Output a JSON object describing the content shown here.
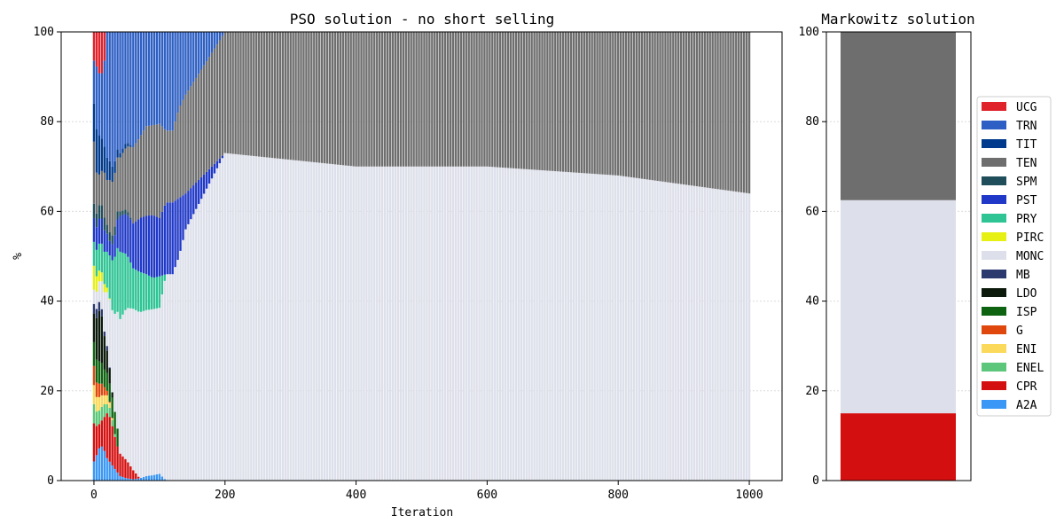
{
  "chart_data": [
    {
      "type": "stacked-bar",
      "title": "PSO solution - no short selling",
      "xlabel": "Iteration",
      "ylabel": "%",
      "xlim": [
        -50,
        1050
      ],
      "ylim": [
        0,
        100
      ],
      "xticks": [
        0,
        200,
        400,
        600,
        800,
        1000
      ],
      "yticks": [
        0,
        20,
        40,
        60,
        80,
        100
      ],
      "grid": "horizontal",
      "series_order": [
        "A2A",
        "CPR",
        "ENEL",
        "ENI",
        "G",
        "ISP",
        "LDO",
        "MB",
        "MONC",
        "PIRC",
        "PRY",
        "PST",
        "SPM",
        "TEN",
        "TIT",
        "TRN",
        "UCG"
      ],
      "series": [
        {
          "name": "A2A",
          "x": [
            0,
            5,
            10,
            15,
            20,
            25,
            30,
            35,
            40,
            50,
            60,
            70,
            80,
            90,
            100,
            110,
            120,
            130,
            140,
            200,
            400,
            600,
            800,
            1000
          ],
          "values": [
            4,
            6,
            8,
            7,
            5,
            4,
            3,
            2,
            1,
            0.5,
            0.3,
            0.5,
            1,
            1.2,
            1.5,
            0,
            0,
            0,
            0,
            0,
            0,
            0,
            0,
            0
          ]
        },
        {
          "name": "CPR",
          "x": [
            0,
            5,
            10,
            15,
            20,
            25,
            30,
            35,
            40,
            50,
            60,
            70,
            80,
            90,
            100,
            110,
            120,
            130,
            140,
            200,
            400,
            600,
            800,
            1000
          ],
          "values": [
            8,
            6,
            5,
            7,
            10,
            10,
            8,
            6,
            5,
            4,
            2,
            0,
            0,
            0,
            0,
            0,
            0,
            0,
            0,
            0,
            0,
            0,
            0,
            0
          ]
        },
        {
          "name": "ENEL",
          "x": [
            0,
            5,
            10,
            15,
            20,
            25,
            30,
            35,
            40,
            50,
            60,
            70,
            80,
            90,
            100,
            110,
            120,
            130,
            140,
            200,
            400,
            600,
            800,
            1000
          ],
          "values": [
            4,
            3,
            3,
            3,
            2,
            2,
            1,
            0,
            0,
            0,
            0,
            0,
            0,
            0,
            0,
            0,
            0,
            0,
            0,
            0,
            0,
            0,
            0,
            0
          ]
        },
        {
          "name": "ENI",
          "x": [
            0,
            5,
            10,
            15,
            20,
            25,
            30,
            35,
            40,
            50,
            60,
            70,
            80,
            90,
            100,
            110,
            120,
            130,
            140,
            200,
            400,
            600,
            800,
            1000
          ],
          "values": [
            4,
            3,
            3,
            2,
            2,
            1,
            0,
            0,
            0,
            0,
            0,
            0,
            0,
            0,
            0,
            0,
            0,
            0,
            0,
            0,
            0,
            0,
            0,
            0
          ]
        },
        {
          "name": "G",
          "x": [
            0,
            5,
            10,
            15,
            20,
            25,
            30,
            35,
            40,
            50,
            60,
            70,
            80,
            90,
            100,
            110,
            120,
            130,
            140,
            200,
            400,
            600,
            800,
            1000
          ],
          "values": [
            4,
            3,
            3,
            2,
            1,
            0,
            0,
            0,
            0,
            0,
            0,
            0,
            0,
            0,
            0,
            0,
            0,
            0,
            0,
            0,
            0,
            0,
            0,
            0
          ]
        },
        {
          "name": "ISP",
          "x": [
            0,
            5,
            10,
            15,
            20,
            25,
            30,
            35,
            40,
            50,
            60,
            70,
            80,
            90,
            100,
            110,
            120,
            130,
            140,
            200,
            400,
            600,
            800,
            1000
          ],
          "values": [
            5,
            5,
            5,
            4,
            4,
            4,
            5,
            5,
            0,
            0,
            0,
            0,
            0,
            0,
            0,
            0,
            0,
            0,
            0,
            0,
            0,
            0,
            0,
            0
          ]
        },
        {
          "name": "LDO",
          "x": [
            0,
            5,
            10,
            15,
            20,
            25,
            30,
            35,
            40,
            50,
            60,
            70,
            80,
            90,
            100,
            110,
            120,
            130,
            140,
            200,
            400,
            600,
            800,
            1000
          ],
          "values": [
            6,
            10,
            12,
            8,
            5,
            3,
            0,
            0,
            0,
            0,
            0,
            0,
            0,
            0,
            0,
            0,
            0,
            0,
            0,
            0,
            0,
            0,
            0,
            0
          ]
        },
        {
          "name": "MB",
          "x": [
            0,
            5,
            10,
            15,
            20,
            25,
            30,
            35,
            40,
            50,
            60,
            70,
            80,
            90,
            100,
            110,
            120,
            130,
            140,
            200,
            400,
            600,
            800,
            1000
          ],
          "values": [
            2,
            2,
            2,
            1,
            1,
            0,
            0,
            0,
            0,
            0,
            0,
            0,
            0,
            0,
            0,
            0,
            0,
            0,
            0,
            0,
            0,
            0,
            0,
            0
          ]
        },
        {
          "name": "MONC",
          "x": [
            0,
            5,
            10,
            15,
            20,
            25,
            30,
            35,
            40,
            50,
            60,
            70,
            80,
            90,
            100,
            110,
            120,
            130,
            140,
            200,
            400,
            600,
            800,
            1000
          ],
          "values": [
            3,
            4,
            5,
            8,
            12,
            16,
            20,
            25,
            30,
            34,
            36,
            37,
            37,
            37,
            37,
            46,
            46,
            50,
            56,
            73,
            70,
            70,
            68,
            64
          ]
        },
        {
          "name": "PIRC",
          "x": [
            0,
            5,
            10,
            15,
            20,
            25,
            30,
            35,
            40,
            50,
            60,
            70,
            80,
            90,
            100,
            110,
            120,
            130,
            140,
            200,
            400,
            600,
            800,
            1000
          ],
          "values": [
            5,
            3,
            2,
            2,
            1,
            0,
            0,
            0,
            0,
            0,
            0,
            0,
            0,
            0,
            0,
            0,
            0,
            0,
            0,
            0,
            0,
            0,
            0,
            0
          ]
        },
        {
          "name": "PRY",
          "x": [
            0,
            5,
            10,
            15,
            20,
            25,
            30,
            35,
            40,
            50,
            60,
            70,
            80,
            90,
            100,
            110,
            120,
            130,
            140,
            200,
            400,
            600,
            800,
            1000
          ],
          "values": [
            5,
            6,
            6,
            7,
            8,
            10,
            12,
            14,
            15,
            12,
            9,
            9,
            8,
            7,
            7,
            0,
            0,
            0,
            0,
            0,
            0,
            0,
            0,
            0
          ]
        },
        {
          "name": "PST",
          "x": [
            0,
            5,
            10,
            15,
            20,
            25,
            30,
            35,
            40,
            50,
            60,
            70,
            80,
            90,
            100,
            110,
            120,
            130,
            140,
            200,
            400,
            600,
            800,
            1000
          ],
          "values": [
            5,
            5,
            6,
            5,
            4,
            3,
            4,
            6,
            8,
            9,
            10,
            12,
            13,
            14,
            13,
            16,
            16,
            13,
            8,
            0,
            0,
            0,
            0,
            0
          ]
        },
        {
          "name": "SPM",
          "x": [
            0,
            5,
            10,
            15,
            20,
            25,
            30,
            35,
            40,
            50,
            60,
            70,
            80,
            90,
            100,
            110,
            120,
            130,
            140,
            200,
            400,
            600,
            800,
            1000
          ],
          "values": [
            3,
            3,
            3,
            3,
            2,
            2,
            2,
            2,
            1,
            1,
            0,
            0,
            0,
            0,
            0,
            0,
            0,
            0,
            0,
            0,
            0,
            0,
            0,
            0
          ]
        },
        {
          "name": "TEN",
          "x": [
            0,
            5,
            10,
            15,
            20,
            25,
            30,
            35,
            40,
            50,
            60,
            70,
            80,
            90,
            100,
            110,
            120,
            130,
            140,
            200,
            400,
            600,
            800,
            1000
          ],
          "values": [
            13,
            8,
            6,
            10,
            10,
            12,
            12,
            12,
            12,
            14,
            17,
            18,
            20,
            20,
            21,
            16,
            16,
            20,
            22,
            27,
            30,
            30,
            32,
            36
          ]
        },
        {
          "name": "TIT",
          "x": [
            0,
            5,
            10,
            15,
            20,
            25,
            30,
            35,
            40,
            50,
            60,
            70,
            80,
            90,
            100,
            110,
            120,
            130,
            140,
            200,
            400,
            600,
            800,
            1000
          ],
          "values": [
            8,
            10,
            8,
            6,
            5,
            4,
            3,
            2,
            1,
            1,
            0,
            0,
            0,
            0,
            0,
            0,
            0,
            0,
            0,
            0,
            0,
            0,
            0,
            0
          ]
        },
        {
          "name": "TRN",
          "x": [
            0,
            5,
            10,
            15,
            20,
            25,
            30,
            35,
            40,
            50,
            60,
            70,
            80,
            90,
            100,
            110,
            120,
            130,
            140,
            200,
            400,
            600,
            800,
            1000
          ],
          "values": [
            9,
            15,
            13,
            17,
            28,
            29,
            31,
            26,
            27,
            24.5,
            25.7,
            23.5,
            21,
            20.8,
            20.5,
            22,
            22,
            17,
            14,
            0,
            0,
            0,
            0,
            0
          ]
        },
        {
          "name": "UCG",
          "x": [
            0,
            5,
            10,
            15,
            20,
            25,
            30,
            35,
            40,
            50,
            60,
            70,
            80,
            90,
            100,
            110,
            120,
            130,
            140,
            200,
            400,
            600,
            800,
            1000
          ],
          "values": [
            6,
            8,
            10,
            8,
            0,
            0,
            0,
            0,
            0,
            0,
            0,
            0,
            0,
            0,
            0,
            0,
            0,
            0,
            0,
            0,
            0,
            0,
            0,
            0
          ]
        }
      ]
    },
    {
      "type": "stacked-bar",
      "title": "Markowitz solution",
      "ylim": [
        0,
        100
      ],
      "yticks": [
        0,
        20,
        40,
        60,
        80,
        100
      ],
      "grid": "horizontal",
      "segments": [
        {
          "name": "CPR",
          "value": 15
        },
        {
          "name": "MONC",
          "value": 47.5
        },
        {
          "name": "TEN",
          "value": 37.5
        }
      ]
    }
  ],
  "legend": {
    "placement": "right",
    "items": [
      {
        "label": "UCG",
        "color": "#e0222b"
      },
      {
        "label": "TRN",
        "color": "#2d5fc4"
      },
      {
        "label": "TIT",
        "color": "#003a8c"
      },
      {
        "label": "TEN",
        "color": "#6e6e6e"
      },
      {
        "label": "SPM",
        "color": "#1f4e5a"
      },
      {
        "label": "PST",
        "color": "#2038c8"
      },
      {
        "label": "PRY",
        "color": "#2fc494"
      },
      {
        "label": "PIRC",
        "color": "#e6f013"
      },
      {
        "label": "MONC",
        "color": "#dde0ea"
      },
      {
        "label": "MB",
        "color": "#2b3a6e"
      },
      {
        "label": "LDO",
        "color": "#0b1a0b"
      },
      {
        "label": "ISP",
        "color": "#0e6310"
      },
      {
        "label": "G",
        "color": "#e0470c"
      },
      {
        "label": "ENI",
        "color": "#fad95b"
      },
      {
        "label": "ENEL",
        "color": "#5cc77a"
      },
      {
        "label": "CPR",
        "color": "#d40f0f"
      },
      {
        "label": "A2A",
        "color": "#3a97f5"
      }
    ]
  }
}
